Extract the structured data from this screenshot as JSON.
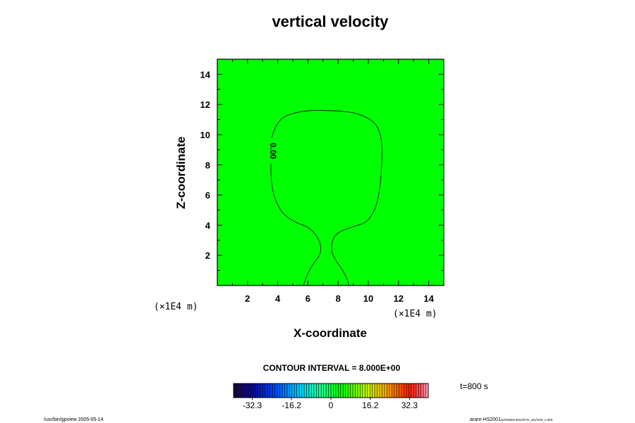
{
  "chart_data": {
    "type": "contour",
    "title": "vertical velocity",
    "xlabel": "X-coordinate",
    "ylabel": "Z-coordinate",
    "x_unit": "(×1E4 m)",
    "y_unit": "(×1E4 m)",
    "xlim": [
      0,
      15
    ],
    "ylim": [
      0,
      15
    ],
    "x_ticks": [
      2,
      4,
      6,
      8,
      10,
      12,
      14
    ],
    "y_ticks": [
      2,
      4,
      6,
      8,
      10,
      12,
      14
    ],
    "x_tick_labels": [
      "2",
      "4",
      "6",
      "8",
      "10",
      "12",
      "14"
    ],
    "y_tick_labels": [
      "2",
      "4",
      "6",
      "8",
      "10",
      "12",
      "14"
    ],
    "contour_level_label": "0.00",
    "contour_interval": "CONTOUR INTERVAL = 8.000E+00",
    "time_label": "t=800 s",
    "field_color": "#00ff00",
    "contour_0": {
      "x": [
        5.7,
        6.0,
        6.4,
        6.8,
        6.8,
        6.4,
        5.9,
        5.0,
        4.2,
        3.7,
        3.55,
        3.6,
        3.6,
        4.2,
        5.2,
        6.2,
        7.2,
        8.2,
        9.2,
        10.1,
        10.6,
        10.85,
        10.9,
        10.8,
        10.6,
        10.3,
        9.8,
        9.0,
        8.2,
        7.8,
        7.6,
        7.6,
        7.9,
        8.3,
        8.6,
        8.7
      ],
      "z": [
        0.0,
        0.8,
        1.5,
        2.1,
        2.8,
        3.5,
        3.9,
        4.3,
        5.0,
        6.2,
        7.5,
        8.8,
        9.8,
        11.0,
        11.45,
        11.6,
        11.6,
        11.55,
        11.4,
        11.0,
        10.5,
        9.7,
        8.5,
        6.8,
        5.6,
        4.8,
        4.2,
        3.9,
        3.6,
        3.3,
        2.8,
        2.2,
        1.6,
        1.0,
        0.4,
        0.0
      ]
    },
    "colorbar": {
      "tick_values": [
        -32.3,
        -16.2,
        0,
        16.2,
        32.3
      ],
      "tick_labels": [
        "-32.3",
        "-16.2",
        "0",
        "16.2",
        "32.3"
      ],
      "range": [
        -40,
        40
      ],
      "stops": [
        {
          "v": 0.0,
          "c": "#1a0a3a"
        },
        {
          "v": 0.1,
          "c": "#0a0aa0"
        },
        {
          "v": 0.22,
          "c": "#0050ff"
        },
        {
          "v": 0.34,
          "c": "#00d0ff"
        },
        {
          "v": 0.45,
          "c": "#20ff90"
        },
        {
          "v": 0.55,
          "c": "#00ff00"
        },
        {
          "v": 0.68,
          "c": "#c0ff00"
        },
        {
          "v": 0.78,
          "c": "#ffb000"
        },
        {
          "v": 0.9,
          "c": "#ff2000"
        },
        {
          "v": 0.96,
          "c": "#ff5060"
        },
        {
          "v": 1.0,
          "c": "#ffb8c8"
        }
      ]
    }
  },
  "footer": {
    "left": "/usr/bin/gpview 2005-05-14",
    "right_main": "arare-HS2001",
    "right_sub": "w/DsWarmRain/Prm_dry/Vel2_t=800"
  }
}
